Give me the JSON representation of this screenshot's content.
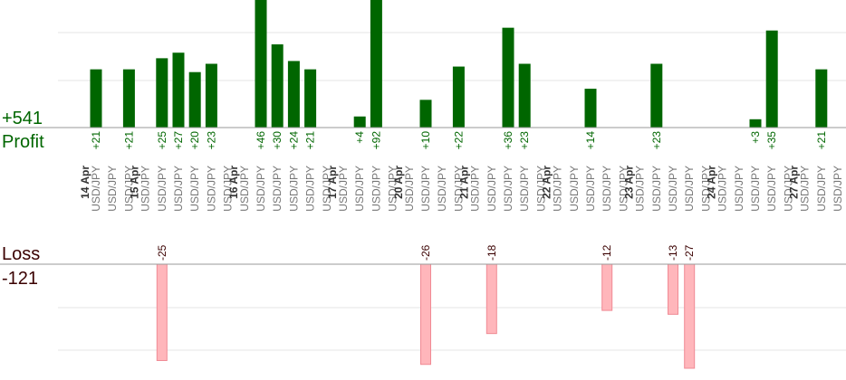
{
  "chart_data": {
    "type": "bar",
    "colors": {
      "profit_bar": "#006600",
      "loss_bar": "#ffb6bb",
      "profit_text": "#006600",
      "loss_text": "#3a0000",
      "pair_text": "#777777",
      "date_text": "#333333",
      "grid": "#e6e6e6",
      "axis": "#999999"
    },
    "profit": {
      "title": "Profit",
      "total": "+541",
      "ylim": [
        0,
        46
      ],
      "grid": true
    },
    "loss": {
      "title": "Loss",
      "total": "-121",
      "ylim": [
        0,
        27
      ],
      "grid": true
    },
    "categories": [
      "USD/JPY",
      "USD/JPY",
      "USD/JPY",
      "USD/JPY",
      "USD/JPY",
      "USD/JPY",
      "USD/JPY",
      "USD/JPY",
      "USD/JPY",
      "USD/JPY",
      "USD/JPY",
      "USD/JPY",
      "USD/JPY",
      "USD/JPY",
      "USD/JPY",
      "USD/JPY",
      "USD/JPY",
      "USD/JPY",
      "USD/JPY",
      "USD/JPY",
      "USD/JPY",
      "USD/JPY",
      "USD/JPY",
      "USD/JPY",
      "USD/JPY",
      "USD/JPY",
      "USD/JPY",
      "USD/JPY",
      "USD/JPY",
      "USD/JPY",
      "USD/JPY",
      "USD/JPY",
      "USD/JPY",
      "USD/JPY",
      "USD/JPY",
      "USD/JPY",
      "USD/JPY",
      "USD/JPY",
      "USD/JPY",
      "USD/JPY",
      "USD/JPY",
      "USD/JPY",
      "USD/JPY",
      "USD/JPY",
      "USD/JPY",
      "USD/JPY",
      "USD/JPY",
      "USD/JPY"
    ],
    "series": [
      {
        "values": [
          21,
          null,
          21,
          null,
          25,
          27,
          20,
          23,
          null,
          null,
          46,
          30,
          24,
          21,
          null,
          null,
          4,
          92,
          null,
          null,
          10,
          null,
          22,
          null,
          null,
          36,
          23,
          null,
          null,
          null,
          14,
          null,
          null,
          null,
          23,
          null,
          null,
          null,
          null,
          null,
          3,
          35,
          null,
          null,
          21,
          null,
          null,
          null
        ],
        "labels": [
          "+21",
          null,
          "+21",
          null,
          "+25",
          "+27",
          "+20",
          "+23",
          null,
          null,
          "+46",
          "+30",
          "+24",
          "+21",
          null,
          null,
          "+4",
          "+92",
          null,
          null,
          "+10",
          null,
          "+22",
          null,
          null,
          "+36",
          "+23",
          null,
          null,
          null,
          "+14",
          null,
          null,
          null,
          "+23",
          null,
          null,
          null,
          null,
          null,
          "+3",
          "+35",
          null,
          null,
          "+21",
          null,
          null,
          null
        ]
      },
      {
        "values": [
          null,
          null,
          null,
          null,
          -25,
          null,
          null,
          null,
          null,
          null,
          null,
          null,
          null,
          null,
          null,
          null,
          null,
          null,
          null,
          null,
          -26,
          null,
          null,
          null,
          -18,
          null,
          null,
          null,
          null,
          null,
          null,
          -12,
          null,
          null,
          null,
          -13,
          -27,
          null,
          null,
          null,
          null,
          null,
          null,
          null,
          null,
          null,
          null,
          null
        ],
        "labels": [
          null,
          null,
          null,
          null,
          "-25",
          null,
          null,
          null,
          null,
          null,
          null,
          null,
          null,
          null,
          null,
          null,
          null,
          null,
          null,
          null,
          "-26",
          null,
          null,
          null,
          "-18",
          null,
          null,
          null,
          null,
          null,
          null,
          "-12",
          null,
          null,
          null,
          "-13",
          "-27",
          null,
          null,
          null,
          null,
          null,
          null,
          null,
          null,
          null,
          null,
          null
        ]
      }
    ],
    "dates": [
      {
        "label": "14 Apr",
        "slot": 0
      },
      {
        "label": "15 Apr",
        "slot": 3
      },
      {
        "label": "16 Apr",
        "slot": 9
      },
      {
        "label": "17 Apr",
        "slot": 15
      },
      {
        "label": "20 Apr",
        "slot": 19
      },
      {
        "label": "21 Apr",
        "slot": 23
      },
      {
        "label": "22 Apr",
        "slot": 28
      },
      {
        "label": "23 Apr",
        "slot": 33
      },
      {
        "label": "24 Apr",
        "slot": 38
      },
      {
        "label": "27 Apr",
        "slot": 43
      }
    ]
  }
}
